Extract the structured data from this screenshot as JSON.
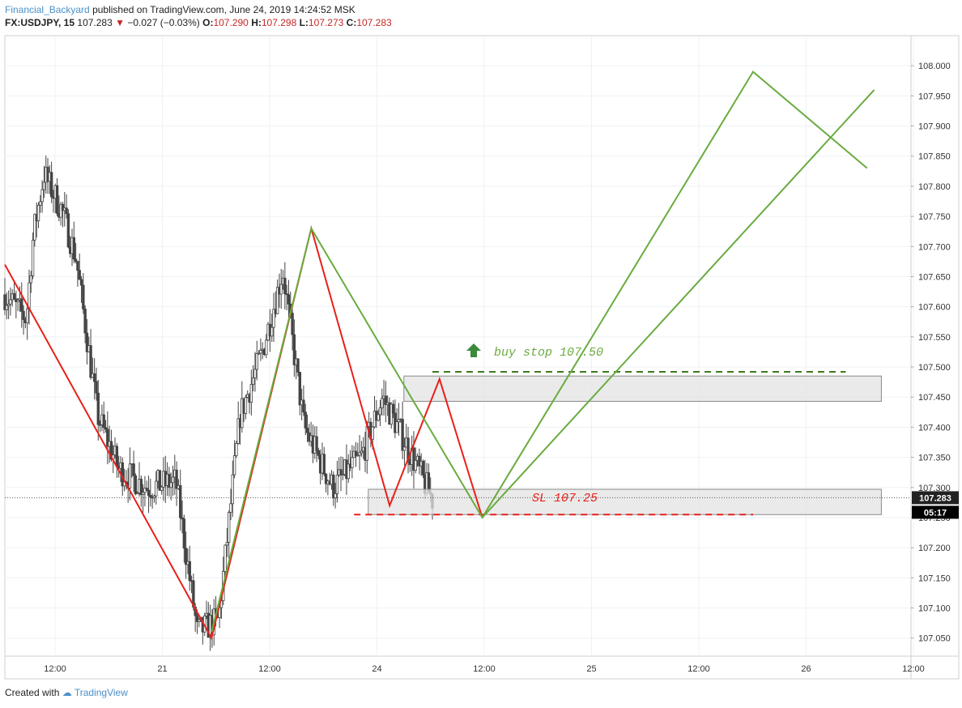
{
  "header": {
    "author": "Financial_Backyard",
    "published": "published on TradingView.com, June 24, 2019 14:24:52 MSK",
    "symbol": "FX:USDJPY, 15",
    "last": "107.283",
    "change": "−0.027 (−0.03%)",
    "open_label": "O:",
    "open": "107.290",
    "high_label": "H:",
    "high": "107.298",
    "low_label": "L:",
    "low": "107.273",
    "close_label": "C:",
    "close": "107.283"
  },
  "footer": {
    "created_with": "Created with",
    "brand": "TradingView"
  },
  "colors": {
    "candle": "#444444",
    "red_pattern": "#e8201a",
    "green_pattern": "#6aab3f",
    "zone_fill": "#e3e3e3",
    "price_label_bg": "#222222"
  },
  "chart_data": {
    "type": "candlestick",
    "ylim": [
      107.02,
      108.05
    ],
    "y_ticks": [
      "108.000",
      "107.950",
      "107.900",
      "107.850",
      "107.800",
      "107.750",
      "107.700",
      "107.650",
      "107.600",
      "107.550",
      "107.500",
      "107.450",
      "107.400",
      "107.350",
      "107.300",
      "107.250",
      "107.200",
      "107.150",
      "107.100",
      "107.050"
    ],
    "x_ticks": [
      "12:00",
      "21",
      "12:00",
      "24",
      "12:00",
      "25",
      "12:00",
      "26",
      "12:00"
    ],
    "last_price": "107.283",
    "countdown": "05:17",
    "close_path": [
      {
        "t": 0,
        "p": 107.62
      },
      {
        "t": 0.03,
        "p": 107.58
      },
      {
        "t": 0.04,
        "p": 107.72
      },
      {
        "t": 0.055,
        "p": 107.82
      },
      {
        "t": 0.08,
        "p": 107.76
      },
      {
        "t": 0.1,
        "p": 107.68
      },
      {
        "t": 0.13,
        "p": 107.42
      },
      {
        "t": 0.16,
        "p": 107.33
      },
      {
        "t": 0.2,
        "p": 107.3
      },
      {
        "t": 0.24,
        "p": 107.31
      },
      {
        "t": 0.27,
        "p": 107.06
      },
      {
        "t": 0.3,
        "p": 107.08
      },
      {
        "t": 0.33,
        "p": 107.42
      },
      {
        "t": 0.36,
        "p": 107.52
      },
      {
        "t": 0.39,
        "p": 107.66
      },
      {
        "t": 0.42,
        "p": 107.4
      },
      {
        "t": 0.46,
        "p": 107.3
      },
      {
        "t": 0.5,
        "p": 107.35
      },
      {
        "t": 0.53,
        "p": 107.45
      },
      {
        "t": 0.56,
        "p": 107.38
      },
      {
        "t": 0.6,
        "p": 107.28
      }
    ],
    "patterns": [
      {
        "color": "red",
        "points": [
          [
            0,
            107.67
          ],
          [
            0.29,
            107.05
          ],
          [
            0.43,
            107.73
          ],
          [
            0.54,
            107.27
          ],
          [
            0.61,
            107.48
          ],
          [
            0.67,
            107.25
          ]
        ]
      },
      {
        "color": "green",
        "points": [
          [
            0.29,
            107.06
          ],
          [
            0.43,
            107.73
          ],
          [
            0.67,
            107.25
          ],
          [
            1.05,
            107.99
          ],
          [
            1.21,
            107.83
          ]
        ]
      },
      {
        "color": "green",
        "points": [
          [
            0.67,
            107.25
          ],
          [
            1.22,
            107.96
          ]
        ]
      }
    ],
    "zones": [
      {
        "from": 0.56,
        "to": 1.23,
        "top": 107.485,
        "bottom": 107.443
      },
      {
        "from": 0.51,
        "to": 1.23,
        "top": 107.297,
        "bottom": 107.255
      }
    ],
    "levels": [
      {
        "label": "buy stop 107.50",
        "value": 107.492,
        "from": 0.6,
        "to": 1.18,
        "color": "green"
      },
      {
        "label": "SL 107.25",
        "value": 107.255,
        "from": 0.49,
        "to": 1.05,
        "color": "red"
      }
    ]
  }
}
